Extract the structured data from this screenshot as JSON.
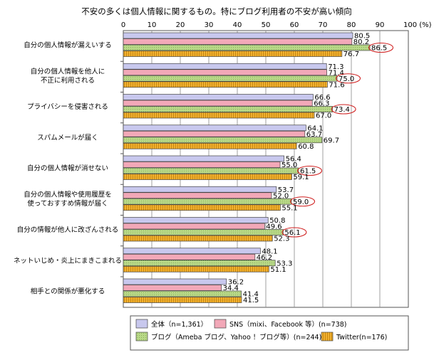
{
  "chart_data": {
    "type": "bar",
    "orientation": "horizontal",
    "title": "不安の多くは個人情報に関するもの。特にブログ利用者の不安が高い傾向",
    "xlim": [
      0,
      100
    ],
    "x_ticks": [
      "0",
      "10",
      "20",
      "30",
      "40",
      "50",
      "60",
      "70",
      "80",
      "90",
      "100 (%)"
    ],
    "x_tick_values": [
      0,
      10,
      20,
      30,
      40,
      50,
      60,
      70,
      80,
      90,
      100
    ],
    "grid": true,
    "categories": [
      [
        "自分の個人情報が漏えいする"
      ],
      [
        "自分の個人情報を他人に",
        "不正に利用される"
      ],
      [
        "プライバシーを侵害される"
      ],
      [
        "スパムメールが届く"
      ],
      [
        "自分の個人情報が消せない"
      ],
      [
        "自分の個人情報や使用履歴を",
        "使っておすすめ情報が届く"
      ],
      [
        "自分の情報が他人に改ざんされる"
      ],
      [
        "ネットいじめ・炎上にまきこまれる"
      ],
      [
        "相手との関係が悪化する"
      ]
    ],
    "series": [
      {
        "name": "全体（n=1,361）",
        "color": "#c8c8ee",
        "pattern": "none",
        "values": [
          80.5,
          71.3,
          66.6,
          64.1,
          56.4,
          53.7,
          50.8,
          48.1,
          36.2
        ]
      },
      {
        "name": "SNS（mixi、Facebook 等）(n=738)",
        "color": "#f2a8b8",
        "pattern": "none",
        "values": [
          80.2,
          71.4,
          66.3,
          63.7,
          55.0,
          52.0,
          49.6,
          46.2,
          34.4
        ]
      },
      {
        "name": "ブログ（Ameba ブログ、Yahoo ！ブログ等）(n=244)",
        "color": "#b8d888",
        "pattern": "dots",
        "values": [
          86.5,
          75.0,
          73.4,
          69.7,
          61.5,
          59.0,
          56.1,
          53.3,
          41.4
        ]
      },
      {
        "name": "Twitter(n=176)",
        "color": "#f0b030",
        "pattern": "vlines",
        "values": [
          76.7,
          71.6,
          67.0,
          60.8,
          59.1,
          55.1,
          52.3,
          51.1,
          41.5
        ]
      }
    ],
    "highlighted_series": "ブログ（Ameba ブログ、Yahoo ！ブログ等）(n=244)",
    "highlighted_categories": [
      0,
      1,
      2,
      4,
      5,
      6
    ],
    "legend_position": "bottom",
    "highlight_color": "#d02020"
  }
}
